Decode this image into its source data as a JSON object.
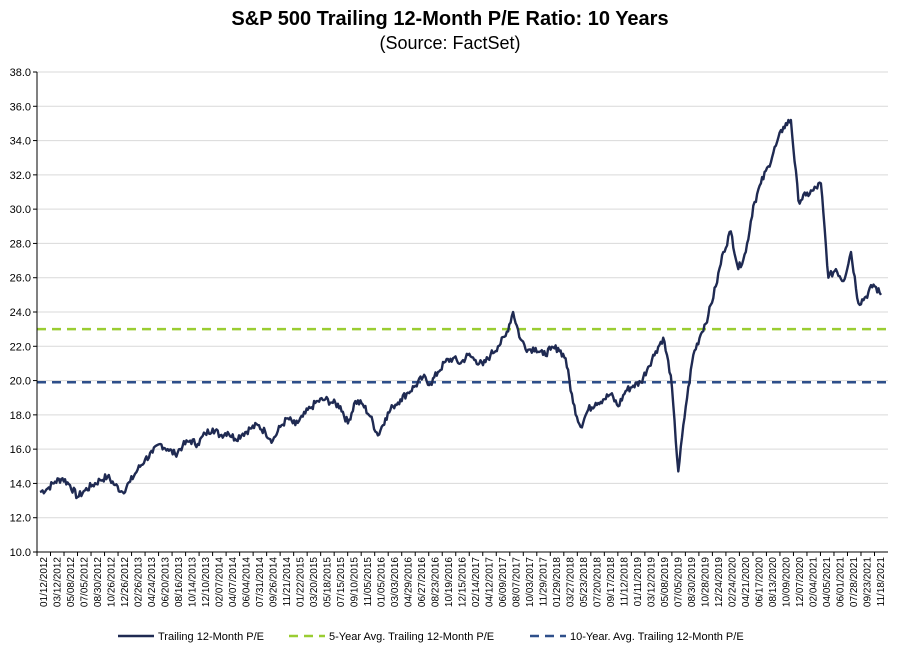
{
  "chart_data": {
    "type": "line",
    "title": "S&P 500 Trailing 12-Month P/E Ratio: 10 Years",
    "subtitle": "(Source: FactSet)",
    "xlabel": "",
    "ylabel": "",
    "ylim": [
      10.0,
      38.0
    ],
    "y_ticks": [
      "10.0",
      "12.0",
      "14.0",
      "16.0",
      "18.0",
      "20.0",
      "22.0",
      "24.0",
      "26.0",
      "28.0",
      "30.0",
      "32.0",
      "34.0",
      "36.0",
      "38.0"
    ],
    "x_tick_labels": [
      "01/12/2012",
      "03/12/2012",
      "05/08/2012",
      "07/05/2012",
      "08/30/2012",
      "10/26/2012",
      "12/26/2012",
      "02/26/2013",
      "04/24/2013",
      "06/20/2013",
      "08/16/2013",
      "10/14/2013",
      "12/10/2013",
      "02/07/2014",
      "04/07/2014",
      "06/04/2014",
      "07/31/2014",
      "09/26/2014",
      "11/21/2014",
      "01/22/2015",
      "03/20/2015",
      "05/18/2015",
      "07/15/2015",
      "09/10/2015",
      "11/05/2015",
      "01/05/2016",
      "03/03/2016",
      "04/29/2016",
      "06/27/2016",
      "08/23/2016",
      "10/19/2016",
      "12/15/2016",
      "02/14/2017",
      "04/12/2017",
      "06/09/2017",
      "08/07/2017",
      "10/03/2017",
      "11/29/2017",
      "01/29/2018",
      "03/27/2018",
      "05/23/2018",
      "07/20/2018",
      "09/17/2018",
      "11/12/2018",
      "01/11/2019",
      "03/12/2019",
      "05/08/2019",
      "07/05/2019",
      "08/30/2019",
      "10/28/2019",
      "12/24/2019",
      "02/24/2020",
      "04/21/2020",
      "06/17/2020",
      "08/13/2020",
      "10/09/2020",
      "12/07/2020",
      "02/04/2021",
      "04/05/2021",
      "06/01/2021",
      "07/28/2021",
      "09/23/2021",
      "11/18/2021"
    ],
    "series": [
      {
        "name": "Trailing 12-Month P/E",
        "color": "#1f2a52",
        "values": [
          13.5,
          13.7,
          14.1,
          14.3,
          13.9,
          13.2,
          13.6,
          13.9,
          14.2,
          14.4,
          13.9,
          13.5,
          14.1,
          14.8,
          15.4,
          15.8,
          16.3,
          16.0,
          15.7,
          16.2,
          16.5,
          16.3,
          16.9,
          17.2,
          16.8,
          17.0,
          16.6,
          16.9,
          17.2,
          17.4,
          17.0,
          16.5,
          17.3,
          17.8,
          17.4,
          17.9,
          18.4,
          18.8,
          18.9,
          18.7,
          18.5,
          17.5,
          18.8,
          18.6,
          17.9,
          16.8,
          17.8,
          18.5,
          18.9,
          19.3,
          19.7,
          20.2,
          19.8,
          20.5,
          21.1,
          21.3,
          21.0,
          21.5,
          21.2,
          20.9,
          21.5,
          22.0,
          22.6,
          24.0,
          22.4,
          21.8,
          21.9,
          21.5,
          21.8,
          21.9,
          21.3,
          18.7,
          17.3,
          18.3,
          18.7,
          18.9,
          19.2,
          18.5,
          19.4,
          19.7,
          19.9,
          20.8,
          21.7,
          22.5,
          20.3,
          14.7,
          18.5,
          21.5,
          22.7,
          23.8,
          25.5,
          27.5,
          28.7,
          26.5,
          27.5,
          30.2,
          31.5,
          32.5,
          33.7,
          34.8,
          35.2,
          30.5,
          30.8,
          31.1,
          31.5,
          26.0,
          26.5,
          25.8,
          27.5,
          24.5,
          24.9,
          25.6,
          25.0
        ]
      },
      {
        "name": "5-Year Avg. Trailing 12-Month P/E",
        "color": "#9acd32",
        "values": [
          23.0
        ]
      },
      {
        "name": "10-Year. Avg. Trailing 12-Month P/E",
        "color": "#2e4f8a",
        "values": [
          19.9
        ]
      }
    ]
  }
}
